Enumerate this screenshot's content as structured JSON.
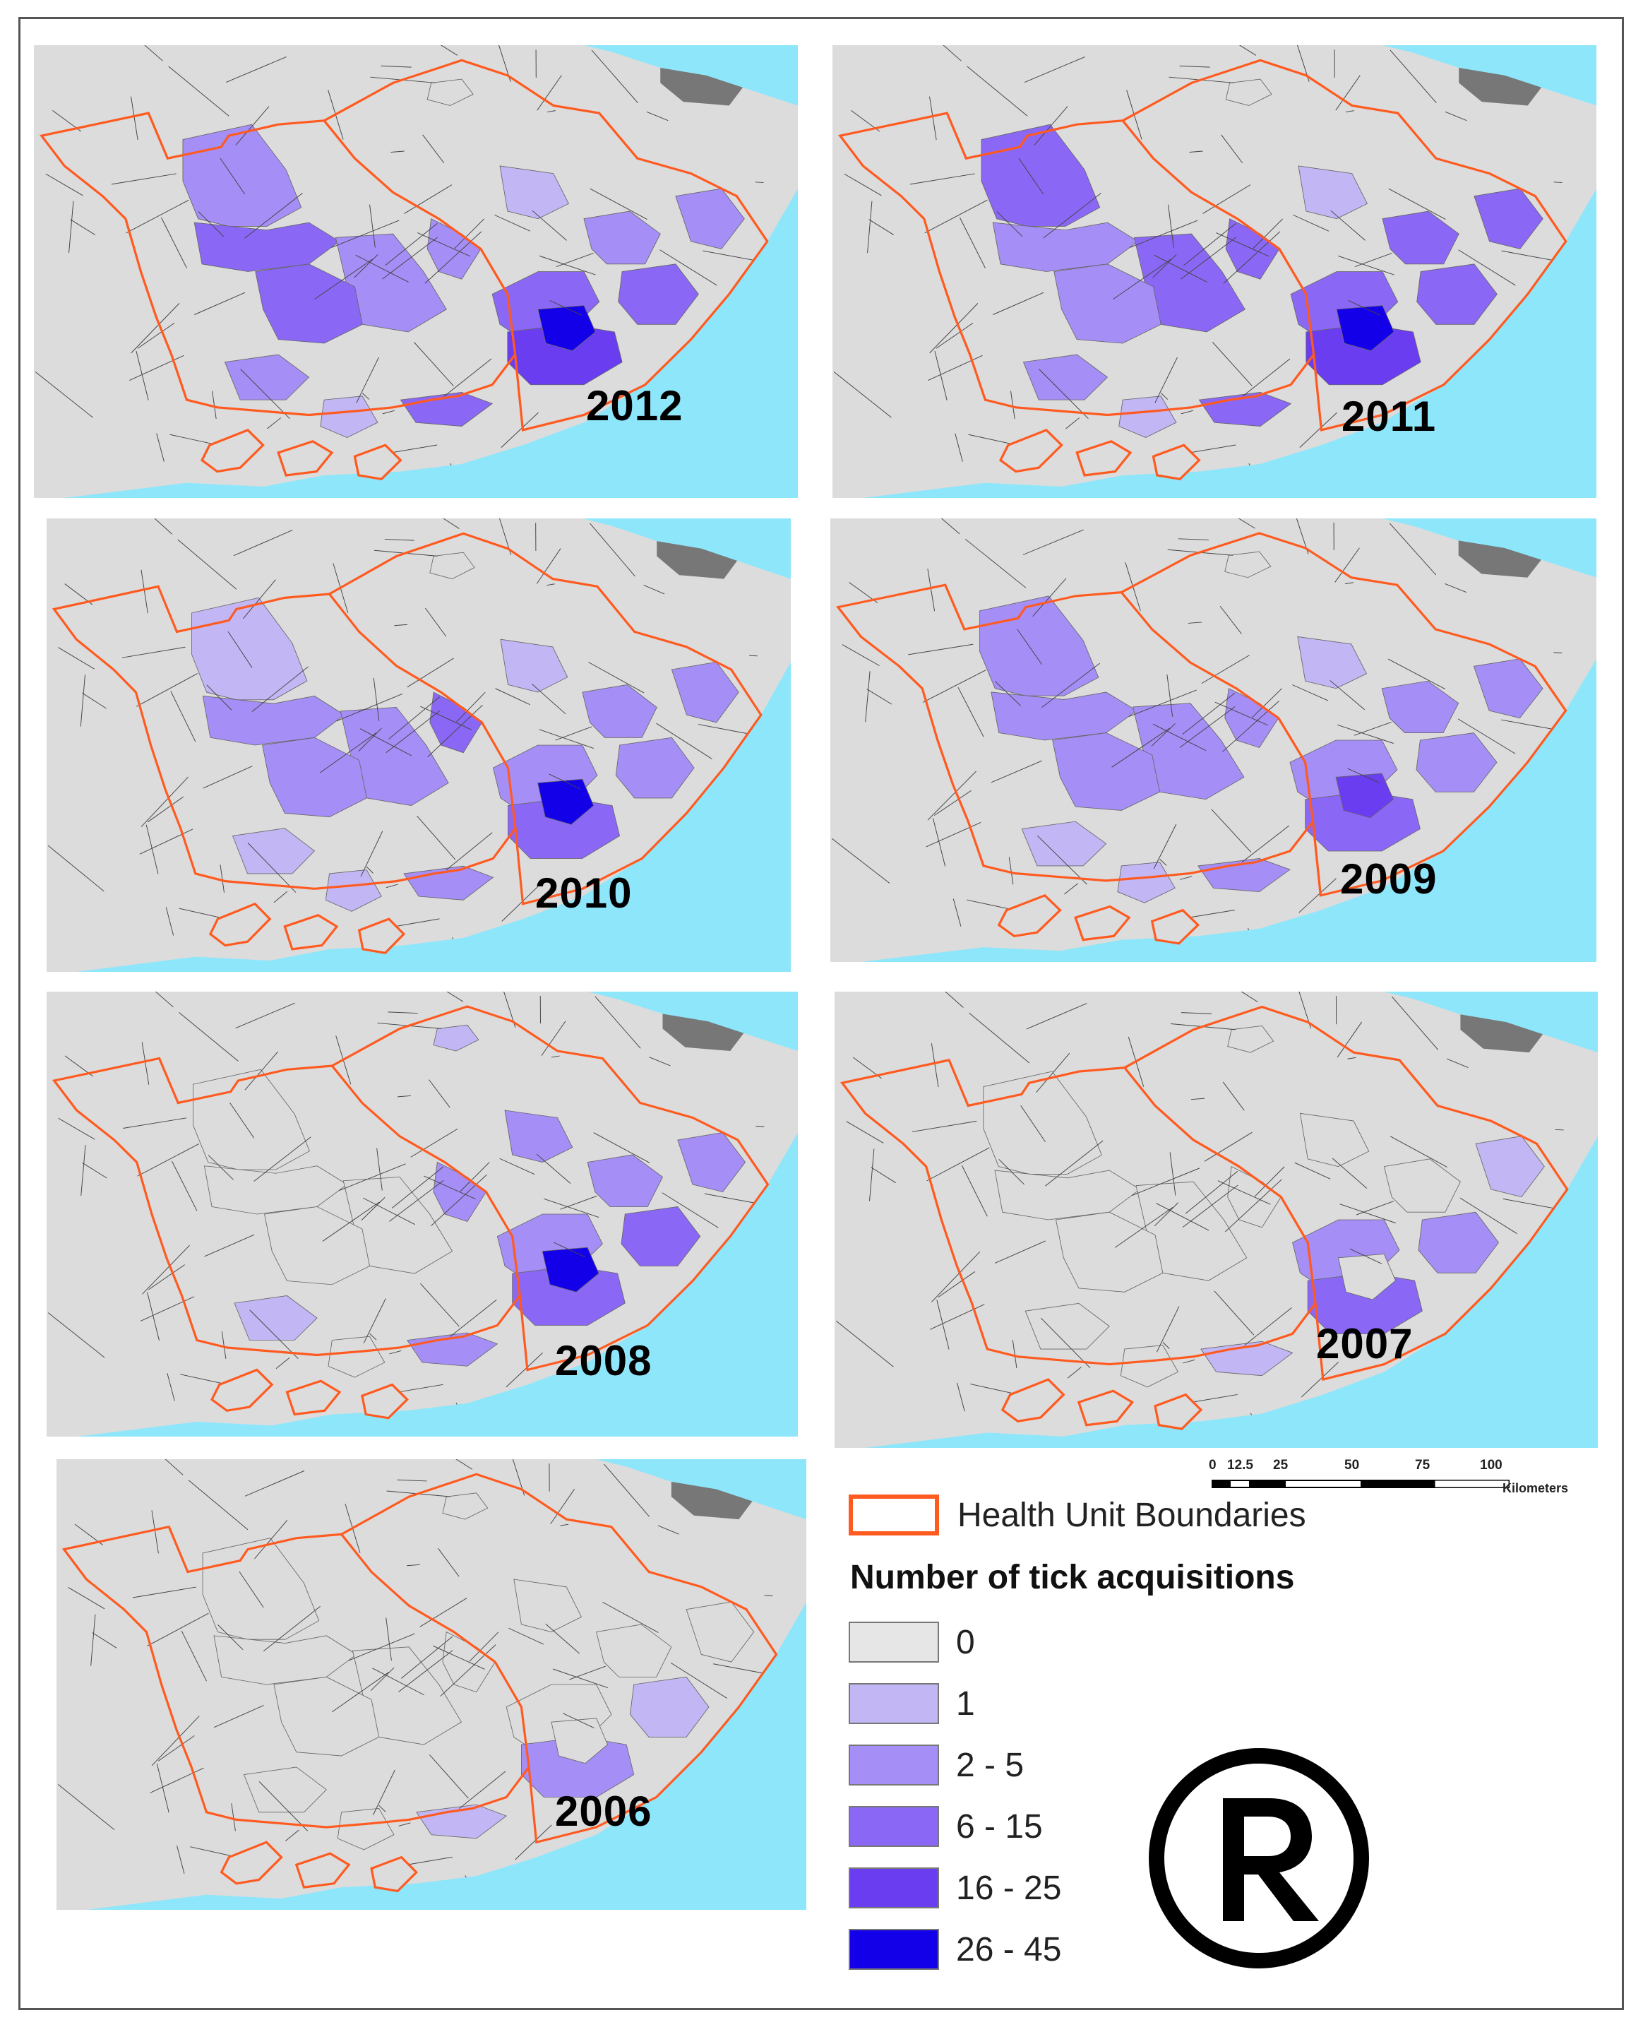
{
  "maps": [
    {
      "year": "2012",
      "intensity": [
        0,
        2,
        3,
        2,
        3,
        2,
        1,
        3,
        2,
        4,
        5,
        3,
        2,
        2,
        3,
        1
      ]
    },
    {
      "year": "2011",
      "intensity": [
        0,
        3,
        2,
        3,
        2,
        3,
        1,
        3,
        3,
        4,
        5,
        3,
        3,
        2,
        3,
        1
      ]
    },
    {
      "year": "2010",
      "intensity": [
        0,
        1,
        2,
        2,
        2,
        3,
        1,
        2,
        2,
        3,
        5,
        2,
        2,
        1,
        2,
        1
      ]
    },
    {
      "year": "2009",
      "intensity": [
        0,
        2,
        2,
        2,
        2,
        2,
        1,
        2,
        2,
        3,
        4,
        2,
        2,
        1,
        2,
        1
      ]
    },
    {
      "year": "2008",
      "intensity": [
        1,
        0,
        0,
        0,
        0,
        2,
        2,
        2,
        2,
        3,
        5,
        3,
        2,
        1,
        2,
        0
      ]
    },
    {
      "year": "2007",
      "intensity": [
        0,
        0,
        0,
        0,
        0,
        0,
        0,
        2,
        0,
        3,
        0,
        2,
        1,
        0,
        1,
        0
      ]
    },
    {
      "year": "2006",
      "intensity": [
        0,
        0,
        0,
        0,
        0,
        0,
        0,
        0,
        0,
        2,
        0,
        1,
        0,
        0,
        1,
        0
      ]
    }
  ],
  "scale_bar": {
    "ticks": [
      "0",
      "12.5",
      "25",
      "50",
      "75",
      "100"
    ],
    "unit": "Kilometers"
  },
  "legend": {
    "boundary_label": "Health Unit Boundaries",
    "boundary_color": "#ff5a1f",
    "title": "Number of tick acquisitions",
    "classes": [
      {
        "label": "0",
        "color": "#e6e6e6"
      },
      {
        "label": "1",
        "color": "#c3b6f5"
      },
      {
        "label": "2 - 5",
        "color": "#a68ef7"
      },
      {
        "label": "6 - 15",
        "color": "#8a68f5"
      },
      {
        "label": "16 - 25",
        "color": "#6a3ef0"
      },
      {
        "label": "26 - 45",
        "color": "#1400e8"
      }
    ]
  },
  "colors": {
    "land": "#dcdcdc",
    "water": "#8ee6fb",
    "township_lines": "#444444",
    "urban": "#555555"
  },
  "symbol": "registered-trademark"
}
